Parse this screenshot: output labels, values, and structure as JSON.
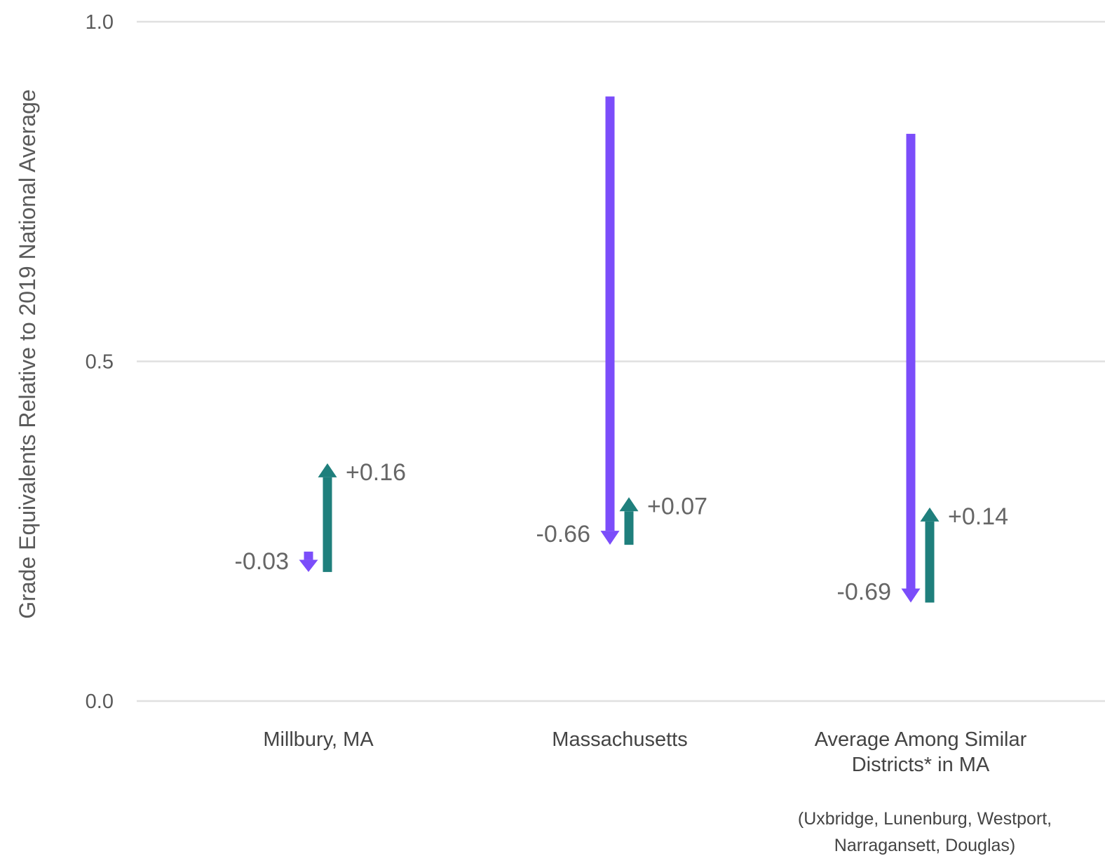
{
  "chart_data": {
    "type": "bar",
    "ylabel": "Grade Equivalents Relative to 2019 National Average",
    "ylim": [
      0,
      1.0
    ],
    "yticks": [
      "0.0",
      "0.5",
      "1.0"
    ],
    "grid": true,
    "categories": [
      {
        "label_lines": [
          "Millbury, MA"
        ],
        "note_lines": []
      },
      {
        "label_lines": [
          "Massachusetts"
        ],
        "note_lines": []
      },
      {
        "label_lines": [
          "Average Among Similar",
          "Districts* in MA"
        ],
        "note_lines": [
          "(Uxbridge, Lunenburg, Westport,",
          "Narragansett, Douglas)"
        ]
      }
    ],
    "series": [
      {
        "start": [
          0.22,
          0.89,
          0.835
        ],
        "change": [
          -0.03,
          -0.66,
          -0.69
        ],
        "labels": [
          "-0.03",
          "-0.66",
          "-0.69"
        ],
        "color": "#7b4dfa"
      },
      {
        "start": [
          0.19,
          0.23,
          0.145
        ],
        "change": [
          0.16,
          0.07,
          0.14
        ],
        "labels": [
          "+0.16",
          "+0.07",
          "+0.14"
        ],
        "color": "#1f7f7c"
      }
    ],
    "colors": {
      "grid": "#e0e0e0"
    }
  }
}
